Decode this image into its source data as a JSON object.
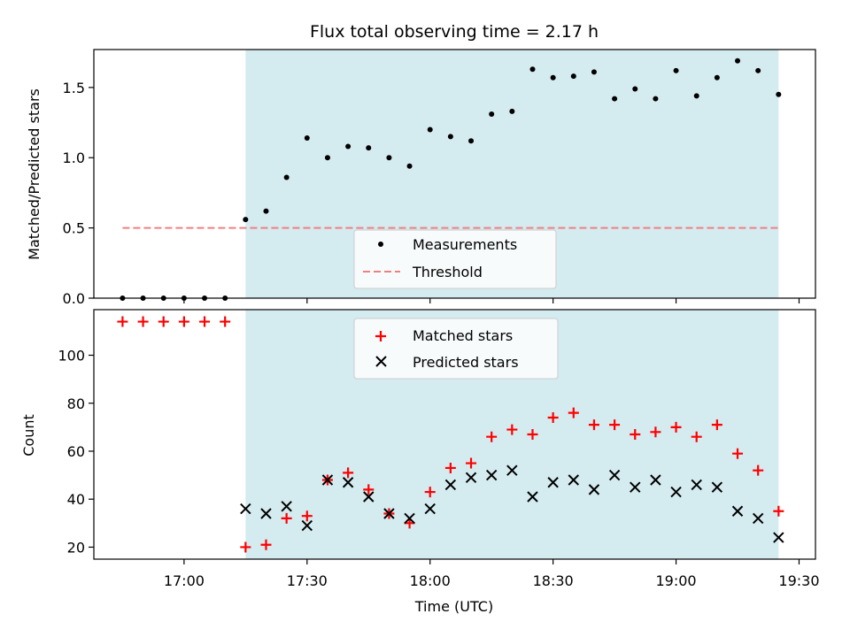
{
  "chart_data": {
    "type": "scatter",
    "title": "Flux total observing time = 2.17 h",
    "xlabel": "Time (UTC)",
    "x_tick_labels": [
      "17:00",
      "17:30",
      "18:00",
      "18:30",
      "19:00",
      "19:30"
    ],
    "x_tick_times": [
      "17:00",
      "17:30",
      "18:00",
      "18:30",
      "19:00",
      "19:30"
    ],
    "observing_window": {
      "start": "17:15",
      "end": "19:25",
      "color": "#d4ebf0"
    },
    "colors": {
      "measurements": "#000000",
      "threshold": "#f08080",
      "matched": "#ff0000",
      "predicted": "#000000",
      "shade": "#d4ebf0"
    },
    "times": [
      "16:45",
      "16:50",
      "16:55",
      "17:00",
      "17:05",
      "17:10",
      "17:15",
      "17:20",
      "17:25",
      "17:30",
      "17:35",
      "17:40",
      "17:45",
      "17:50",
      "17:55",
      "18:00",
      "18:05",
      "18:10",
      "18:15",
      "18:20",
      "18:25",
      "18:30",
      "18:35",
      "18:40",
      "18:45",
      "18:50",
      "18:55",
      "19:00",
      "19:05",
      "19:10",
      "19:15",
      "19:20",
      "19:25"
    ],
    "top": {
      "ylabel": "Matched/Predicted stars",
      "ylim": [
        0,
        1.77
      ],
      "y_ticks": [
        "0.0",
        "0.5",
        "1.0",
        "1.5"
      ],
      "y_tick_values": [
        0,
        0.5,
        1.0,
        1.5
      ],
      "threshold": {
        "value": 0.5,
        "start": "16:45",
        "end": "19:25"
      },
      "series": [
        {
          "name": "Measurements",
          "values": [
            0,
            0,
            0,
            0,
            0,
            0,
            0.56,
            0.62,
            0.86,
            1.14,
            1.0,
            1.08,
            1.07,
            1.0,
            0.94,
            1.2,
            1.15,
            1.12,
            1.31,
            1.33,
            1.63,
            1.57,
            1.58,
            1.61,
            1.42,
            1.49,
            1.42,
            1.62,
            1.44,
            1.57,
            1.69,
            1.62,
            1.45
          ]
        }
      ],
      "legend": {
        "position": "lower center",
        "entries": [
          "Measurements",
          "Threshold"
        ]
      }
    },
    "bottom": {
      "ylabel": "Count",
      "ylim": [
        15,
        119
      ],
      "y_ticks": [
        "20",
        "40",
        "60",
        "80",
        "100"
      ],
      "y_tick_values": [
        20,
        40,
        60,
        80,
        100
      ],
      "series": [
        {
          "name": "Matched stars",
          "marker": "+",
          "values": [
            114,
            114,
            114,
            114,
            114,
            114,
            20,
            21,
            32,
            33,
            48,
            51,
            44,
            34,
            30,
            43,
            53,
            55,
            66,
            69,
            67,
            74,
            76,
            71,
            71,
            67,
            68,
            70,
            66,
            71,
            59,
            52,
            35
          ]
        },
        {
          "name": "Predicted stars",
          "marker": "x",
          "values": [
            null,
            null,
            null,
            null,
            null,
            null,
            36,
            34,
            37,
            29,
            48,
            47,
            41,
            34,
            32,
            36,
            46,
            49,
            50,
            52,
            41,
            47,
            48,
            44,
            50,
            45,
            48,
            43,
            46,
            45,
            35,
            32,
            24
          ]
        }
      ],
      "legend": {
        "position": "upper center",
        "entries": [
          "Matched stars",
          "Predicted stars"
        ]
      }
    }
  }
}
